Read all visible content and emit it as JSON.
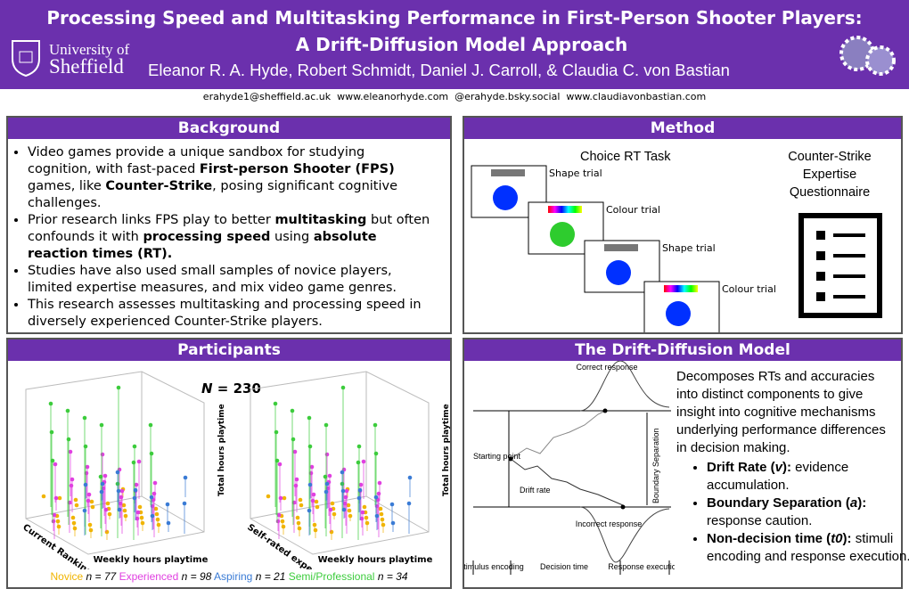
{
  "header": {
    "title_line1": "Processing Speed and Multitasking Performance in First-Person Shooter Players:",
    "title_line2": "A Drift-Diffusion Model Approach",
    "university_line1": "University of",
    "university_line2": "Sheffield",
    "authors": "Eleanor R. A. Hyde, Robert Schmidt, Daniel J. Carroll, & Claudia C. von Bastian",
    "contacts": "erahyde1@sheffield.ac.uk  www.eleanorhyde.com  @erahyde.bsky.social  www.claudiavonbastian.com"
  },
  "background": {
    "title": "Background",
    "bullets": [
      [
        {
          "t": "Video games provide a unique sandbox for studying cognition, with fast-paced "
        },
        {
          "t": "First-person Shooter (FPS)",
          "b": true
        },
        {
          "t": " games, like "
        },
        {
          "t": "Counter-Strike",
          "b": true
        },
        {
          "t": ", posing significant cognitive challenges."
        }
      ],
      [
        {
          "t": "Prior research links FPS play to better "
        },
        {
          "t": "multitasking",
          "b": true
        },
        {
          "t": " but often confounds it with "
        },
        {
          "t": "processing speed",
          "b": true
        },
        {
          "t": " using "
        },
        {
          "t": "absolute reaction times (RT).",
          "b": true
        }
      ],
      [
        {
          "t": "Studies have also used small samples of novice players, limited expertise measures, and mix video game genres."
        }
      ],
      [
        {
          "t": "This research assesses multitasking and processing speed in diversely experienced Counter-Strike players."
        }
      ]
    ]
  },
  "method": {
    "title": "Method",
    "task_title": "Choice RT Task",
    "trials": [
      "Shape trial",
      "Colour trial",
      "Shape trial",
      "Colour trial"
    ],
    "questionnaire": "Counter-Strike Expertise Questionnaire"
  },
  "participants": {
    "title": "Participants",
    "n_symbol": "N",
    "n_value": "= 230",
    "plot1": {
      "x_label": "Weekly hours playtime",
      "y_label": "Current Ranking",
      "z_label": "Total hours playtime"
    },
    "plot2": {
      "x_label": "Weekly hours playtime",
      "y_label": "Self-rated expertise",
      "z_label": "Total hours playtime"
    },
    "groups": [
      {
        "name": "Novice",
        "count": "n = 77",
        "color": "#f0b400"
      },
      {
        "name": "Experienced",
        "count": "n = 98",
        "color": "#e040e0"
      },
      {
        "name": "Aspiring",
        "count": "n = 21",
        "color": "#3a7bd5"
      },
      {
        "name": "Semi/Professional",
        "count": "n = 34",
        "color": "#3ccc3c"
      }
    ]
  },
  "ddm": {
    "title": "The Drift-Diffusion Model",
    "description": "Decomposes RTs and accuracies into distinct components to give insight into cognitive mechanisms underlying performance differences in decision making.",
    "bullets": [
      [
        {
          "t": "Drift Rate (",
          "b": true
        },
        {
          "t": "v",
          "b": true,
          "i": true
        },
        {
          "t": "):",
          "b": true
        },
        {
          "t": " evidence accumulation."
        }
      ],
      [
        {
          "t": "Boundary Separation (",
          "b": true
        },
        {
          "t": "a",
          "b": true,
          "i": true
        },
        {
          "t": "):",
          "b": true
        },
        {
          "t": " response caution."
        }
      ],
      [
        {
          "t": "Non-decision time (",
          "b": true
        },
        {
          "t": "t0",
          "b": true,
          "i": true
        },
        {
          "t": "):",
          "b": true
        },
        {
          "t": " stimuli encoding and response execution."
        }
      ]
    ],
    "diagram": {
      "correct": "Correct response",
      "incorrect": "Incorrect response",
      "start": "Starting point",
      "drift": "Drift rate",
      "boundary": "Boundary Separation",
      "stimulus": "Stimulus encoding",
      "decision": "Decision time",
      "response": "Response execution"
    }
  }
}
